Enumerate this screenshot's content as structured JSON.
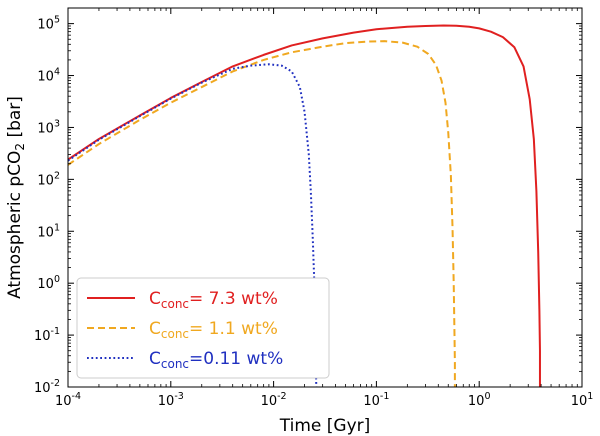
{
  "chart_data": {
    "type": "line",
    "x_scale": "log",
    "y_scale": "log",
    "xlim": [
      0.0001,
      10
    ],
    "ylim": [
      0.01,
      200000
    ],
    "xlabel": "Time [Gyr]",
    "ylabel": {
      "main": "Atmospheric pCO",
      "sub": "2",
      "unit": " [bar]"
    },
    "x_ticks": [
      {
        "value": 0.0001,
        "base": "10",
        "exp": "-4"
      },
      {
        "value": 0.001,
        "base": "10",
        "exp": "-3"
      },
      {
        "value": 0.01,
        "base": "10",
        "exp": "-2"
      },
      {
        "value": 0.1,
        "base": "10",
        "exp": "-1"
      },
      {
        "value": 1,
        "base": "10",
        "exp": "0"
      },
      {
        "value": 10,
        "base": "10",
        "exp": "1"
      }
    ],
    "y_ticks": [
      {
        "value": 0.01,
        "base": "10",
        "exp": "-2"
      },
      {
        "value": 0.1,
        "base": "10",
        "exp": "-1"
      },
      {
        "value": 1,
        "base": "10",
        "exp": "0"
      },
      {
        "value": 10,
        "base": "10",
        "exp": "1"
      },
      {
        "value": 100,
        "base": "10",
        "exp": "2"
      },
      {
        "value": 1000,
        "base": "10",
        "exp": "3"
      },
      {
        "value": 10000,
        "base": "10",
        "exp": "4"
      },
      {
        "value": 100000,
        "base": "10",
        "exp": "5"
      }
    ],
    "grid": false,
    "legend_position": "bottom-left",
    "series": [
      {
        "name": "C",
        "name_sub": "conc",
        "name_value": "= 7.3 wt%",
        "color": "#e02020",
        "style": "solid",
        "x": [
          0.0001,
          0.0002,
          0.0005,
          0.001,
          0.002,
          0.004,
          0.008,
          0.015,
          0.03,
          0.06,
          0.1,
          0.2,
          0.3,
          0.45,
          0.6,
          0.8,
          1.0,
          1.3,
          1.7,
          2.2,
          2.7,
          3.1,
          3.4,
          3.6,
          3.75,
          3.85,
          3.9,
          3.9
        ],
        "y": [
          240,
          600,
          1700,
          3700,
          7500,
          15000,
          25000,
          38000,
          52000,
          67000,
          78000,
          87000,
          90000,
          92000,
          91000,
          87000,
          81000,
          70000,
          55000,
          35000,
          15000,
          3500,
          600,
          60,
          4,
          0.3,
          0.05,
          0.01
        ]
      },
      {
        "name": "C",
        "name_sub": "conc",
        "name_value": "= 1.1 wt%",
        "color": "#f0a820",
        "style": "dashed",
        "x": [
          0.0001,
          0.0002,
          0.0005,
          0.001,
          0.002,
          0.004,
          0.008,
          0.015,
          0.03,
          0.05,
          0.08,
          0.12,
          0.18,
          0.25,
          0.32,
          0.38,
          0.43,
          0.47,
          0.5,
          0.53,
          0.55,
          0.565,
          0.575,
          0.58,
          0.58
        ],
        "y": [
          190,
          480,
          1400,
          3000,
          6000,
          12000,
          20000,
          28000,
          36000,
          42000,
          45000,
          46000,
          43000,
          36000,
          26000,
          16000,
          8000,
          3000,
          800,
          120,
          12,
          1,
          0.1,
          0.03,
          0.01
        ]
      },
      {
        "name": "C",
        "name_sub": "conc",
        "name_value": "=0.11 wt%",
        "color": "#2030c0",
        "style": "dotted",
        "x": [
          0.0001,
          0.0002,
          0.0005,
          0.001,
          0.002,
          0.004,
          0.006,
          0.009,
          0.012,
          0.015,
          0.018,
          0.02,
          0.022,
          0.023,
          0.024,
          0.025,
          0.0255,
          0.0258,
          0.026
        ],
        "y": [
          230,
          580,
          1650,
          3600,
          7300,
          13500,
          15500,
          16500,
          15500,
          12000,
          6000,
          2000,
          300,
          60,
          8,
          0.8,
          0.1,
          0.03,
          0.01
        ]
      }
    ]
  }
}
